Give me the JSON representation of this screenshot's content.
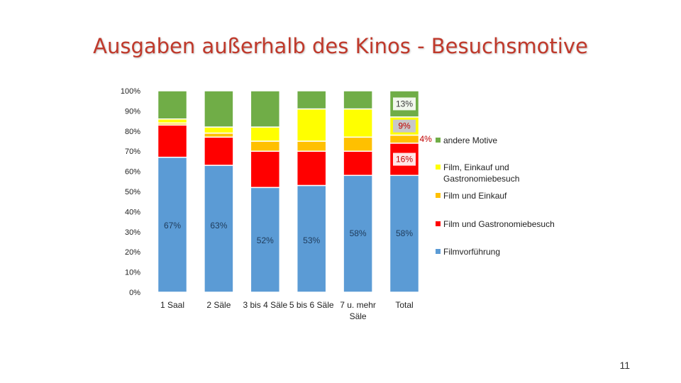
{
  "slide": {
    "title": "Ausgaben außerhalb des Kinos - Besuchsmotive",
    "page_number": "11"
  },
  "colors": {
    "Filmvorführung": "#5b9bd5",
    "Film und Gastronomiebesuch": "#ff0000",
    "Film und Einkauf": "#ffc000",
    "Film, Einkauf und Gastronomiebesuch": "#ffff00",
    "andere Motive": "#70ad47",
    "title": "#c0392b"
  },
  "chart_data": {
    "type": "bar",
    "stacked": true,
    "title": "",
    "xlabel": "",
    "ylabel": "",
    "ylim": [
      0,
      100
    ],
    "y_ticks": [
      "0%",
      "10%",
      "20%",
      "30%",
      "40%",
      "50%",
      "60%",
      "70%",
      "80%",
      "90%",
      "100%"
    ],
    "categories": [
      "1 Saal",
      "2 Säle",
      "3 bis 4 Säle",
      "5 bis 6 Säle",
      "7 u. mehr Säle",
      "Total"
    ],
    "legend_position": "right",
    "series": [
      {
        "name": "Filmvorführung",
        "values": [
          67,
          63,
          52,
          53,
          58,
          58
        ]
      },
      {
        "name": "Film und Gastronomiebesuch",
        "values": [
          16,
          14,
          18,
          17,
          12,
          16
        ]
      },
      {
        "name": "Film und Einkauf",
        "values": [
          1,
          2,
          5,
          5,
          7,
          4
        ]
      },
      {
        "name": "Film, Einkauf und Gastronomiebesuch",
        "values": [
          2,
          3,
          7,
          16,
          14,
          9
        ]
      },
      {
        "name": "andere Motive",
        "values": [
          14,
          18,
          18,
          9,
          9,
          13
        ]
      }
    ],
    "data_labels": [
      {
        "category": "1 Saal",
        "series": "Filmvorführung",
        "text": "67%"
      },
      {
        "category": "2 Säle",
        "series": "Filmvorführung",
        "text": "63%"
      },
      {
        "category": "3 bis 4 Säle",
        "series": "Filmvorführung",
        "text": "52%"
      },
      {
        "category": "5 bis 6 Säle",
        "series": "Filmvorführung",
        "text": "53%"
      },
      {
        "category": "7 u. mehr Säle",
        "series": "Filmvorführung",
        "text": "58%"
      },
      {
        "category": "Total",
        "series": "Filmvorführung",
        "text": "58%"
      },
      {
        "category": "Total",
        "series": "Film und Gastronomiebesuch",
        "text": "16%"
      },
      {
        "category": "Total",
        "series": "Film und Einkauf",
        "text": "4%"
      },
      {
        "category": "Total",
        "series": "Film, Einkauf und Gastronomiebesuch",
        "text": "9%"
      },
      {
        "category": "Total",
        "series": "andere Motive",
        "text": "13%"
      }
    ],
    "legend": [
      {
        "series": "andere Motive",
        "lines": [
          "andere Motive"
        ]
      },
      {
        "series": "Film, Einkauf und Gastronomiebesuch",
        "lines": [
          "Film, Einkauf und",
          "Gastronomiebesuch"
        ]
      },
      {
        "series": "Film und Einkauf",
        "lines": [
          "Film und Einkauf"
        ]
      },
      {
        "series": "Film und Gastronomiebesuch",
        "lines": [
          "Film und Gastronomiebesuch"
        ]
      },
      {
        "series": "Filmvorführung",
        "lines": [
          "Filmvorführung"
        ]
      }
    ]
  }
}
